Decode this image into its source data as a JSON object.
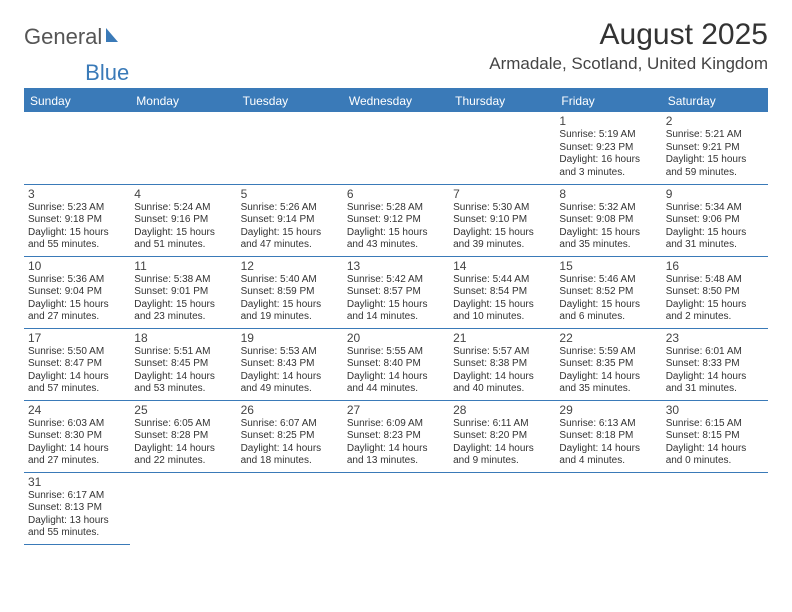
{
  "logo": {
    "text1": "General",
    "text2": "Blue"
  },
  "title": "August 2025",
  "location": "Armadale, Scotland, United Kingdom",
  "colors": {
    "header_bg": "#3a7ab8",
    "border": "#3a7ab8",
    "bg": "#ffffff"
  },
  "weekdays": [
    "Sunday",
    "Monday",
    "Tuesday",
    "Wednesday",
    "Thursday",
    "Friday",
    "Saturday"
  ],
  "days": [
    {
      "n": "1",
      "sr": "Sunrise: 5:19 AM",
      "ss": "Sunset: 9:23 PM",
      "d1": "Daylight: 16 hours",
      "d2": "and 3 minutes."
    },
    {
      "n": "2",
      "sr": "Sunrise: 5:21 AM",
      "ss": "Sunset: 9:21 PM",
      "d1": "Daylight: 15 hours",
      "d2": "and 59 minutes."
    },
    {
      "n": "3",
      "sr": "Sunrise: 5:23 AM",
      "ss": "Sunset: 9:18 PM",
      "d1": "Daylight: 15 hours",
      "d2": "and 55 minutes."
    },
    {
      "n": "4",
      "sr": "Sunrise: 5:24 AM",
      "ss": "Sunset: 9:16 PM",
      "d1": "Daylight: 15 hours",
      "d2": "and 51 minutes."
    },
    {
      "n": "5",
      "sr": "Sunrise: 5:26 AM",
      "ss": "Sunset: 9:14 PM",
      "d1": "Daylight: 15 hours",
      "d2": "and 47 minutes."
    },
    {
      "n": "6",
      "sr": "Sunrise: 5:28 AM",
      "ss": "Sunset: 9:12 PM",
      "d1": "Daylight: 15 hours",
      "d2": "and 43 minutes."
    },
    {
      "n": "7",
      "sr": "Sunrise: 5:30 AM",
      "ss": "Sunset: 9:10 PM",
      "d1": "Daylight: 15 hours",
      "d2": "and 39 minutes."
    },
    {
      "n": "8",
      "sr": "Sunrise: 5:32 AM",
      "ss": "Sunset: 9:08 PM",
      "d1": "Daylight: 15 hours",
      "d2": "and 35 minutes."
    },
    {
      "n": "9",
      "sr": "Sunrise: 5:34 AM",
      "ss": "Sunset: 9:06 PM",
      "d1": "Daylight: 15 hours",
      "d2": "and 31 minutes."
    },
    {
      "n": "10",
      "sr": "Sunrise: 5:36 AM",
      "ss": "Sunset: 9:04 PM",
      "d1": "Daylight: 15 hours",
      "d2": "and 27 minutes."
    },
    {
      "n": "11",
      "sr": "Sunrise: 5:38 AM",
      "ss": "Sunset: 9:01 PM",
      "d1": "Daylight: 15 hours",
      "d2": "and 23 minutes."
    },
    {
      "n": "12",
      "sr": "Sunrise: 5:40 AM",
      "ss": "Sunset: 8:59 PM",
      "d1": "Daylight: 15 hours",
      "d2": "and 19 minutes."
    },
    {
      "n": "13",
      "sr": "Sunrise: 5:42 AM",
      "ss": "Sunset: 8:57 PM",
      "d1": "Daylight: 15 hours",
      "d2": "and 14 minutes."
    },
    {
      "n": "14",
      "sr": "Sunrise: 5:44 AM",
      "ss": "Sunset: 8:54 PM",
      "d1": "Daylight: 15 hours",
      "d2": "and 10 minutes."
    },
    {
      "n": "15",
      "sr": "Sunrise: 5:46 AM",
      "ss": "Sunset: 8:52 PM",
      "d1": "Daylight: 15 hours",
      "d2": "and 6 minutes."
    },
    {
      "n": "16",
      "sr": "Sunrise: 5:48 AM",
      "ss": "Sunset: 8:50 PM",
      "d1": "Daylight: 15 hours",
      "d2": "and 2 minutes."
    },
    {
      "n": "17",
      "sr": "Sunrise: 5:50 AM",
      "ss": "Sunset: 8:47 PM",
      "d1": "Daylight: 14 hours",
      "d2": "and 57 minutes."
    },
    {
      "n": "18",
      "sr": "Sunrise: 5:51 AM",
      "ss": "Sunset: 8:45 PM",
      "d1": "Daylight: 14 hours",
      "d2": "and 53 minutes."
    },
    {
      "n": "19",
      "sr": "Sunrise: 5:53 AM",
      "ss": "Sunset: 8:43 PM",
      "d1": "Daylight: 14 hours",
      "d2": "and 49 minutes."
    },
    {
      "n": "20",
      "sr": "Sunrise: 5:55 AM",
      "ss": "Sunset: 8:40 PM",
      "d1": "Daylight: 14 hours",
      "d2": "and 44 minutes."
    },
    {
      "n": "21",
      "sr": "Sunrise: 5:57 AM",
      "ss": "Sunset: 8:38 PM",
      "d1": "Daylight: 14 hours",
      "d2": "and 40 minutes."
    },
    {
      "n": "22",
      "sr": "Sunrise: 5:59 AM",
      "ss": "Sunset: 8:35 PM",
      "d1": "Daylight: 14 hours",
      "d2": "and 35 minutes."
    },
    {
      "n": "23",
      "sr": "Sunrise: 6:01 AM",
      "ss": "Sunset: 8:33 PM",
      "d1": "Daylight: 14 hours",
      "d2": "and 31 minutes."
    },
    {
      "n": "24",
      "sr": "Sunrise: 6:03 AM",
      "ss": "Sunset: 8:30 PM",
      "d1": "Daylight: 14 hours",
      "d2": "and 27 minutes."
    },
    {
      "n": "25",
      "sr": "Sunrise: 6:05 AM",
      "ss": "Sunset: 8:28 PM",
      "d1": "Daylight: 14 hours",
      "d2": "and 22 minutes."
    },
    {
      "n": "26",
      "sr": "Sunrise: 6:07 AM",
      "ss": "Sunset: 8:25 PM",
      "d1": "Daylight: 14 hours",
      "d2": "and 18 minutes."
    },
    {
      "n": "27",
      "sr": "Sunrise: 6:09 AM",
      "ss": "Sunset: 8:23 PM",
      "d1": "Daylight: 14 hours",
      "d2": "and 13 minutes."
    },
    {
      "n": "28",
      "sr": "Sunrise: 6:11 AM",
      "ss": "Sunset: 8:20 PM",
      "d1": "Daylight: 14 hours",
      "d2": "and 9 minutes."
    },
    {
      "n": "29",
      "sr": "Sunrise: 6:13 AM",
      "ss": "Sunset: 8:18 PM",
      "d1": "Daylight: 14 hours",
      "d2": "and 4 minutes."
    },
    {
      "n": "30",
      "sr": "Sunrise: 6:15 AM",
      "ss": "Sunset: 8:15 PM",
      "d1": "Daylight: 14 hours",
      "d2": "and 0 minutes."
    },
    {
      "n": "31",
      "sr": "Sunrise: 6:17 AM",
      "ss": "Sunset: 8:13 PM",
      "d1": "Daylight: 13 hours",
      "d2": "and 55 minutes."
    }
  ]
}
